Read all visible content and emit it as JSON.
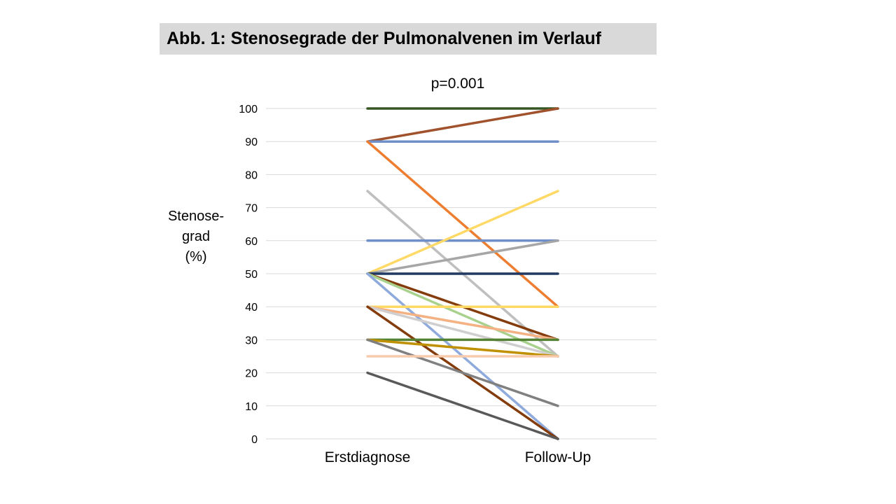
{
  "title": "Abb. 1: Stenosegrade der Pulmonalvenen im Verlauf",
  "ylabel_lines": [
    "Stenose-",
    "grad",
    "(%)"
  ],
  "chart_data": {
    "type": "line",
    "title": "Abb. 1: Stenosegrade der Pulmonalvenen im Verlauf",
    "subtitle": "p=0.001",
    "xlabel": "",
    "ylabel": "Stenose-grad (%)",
    "categories": [
      "Erstdiagnose",
      "Follow-Up"
    ],
    "ylim": [
      0,
      100
    ],
    "yticks": [
      0,
      10,
      20,
      30,
      40,
      50,
      60,
      70,
      80,
      90,
      100
    ],
    "grid": true,
    "legend": "none",
    "series": [
      {
        "values": [
          100,
          100
        ],
        "color": "#375623"
      },
      {
        "values": [
          90,
          100
        ],
        "color": "#a0522d"
      },
      {
        "values": [
          90,
          90
        ],
        "color": "#6f8fc8"
      },
      {
        "values": [
          90,
          40
        ],
        "color": "#ed7d31"
      },
      {
        "values": [
          75,
          25
        ],
        "color": "#bfbfbf"
      },
      {
        "values": [
          60,
          60
        ],
        "color": "#6f8fc8"
      },
      {
        "values": [
          50,
          75
        ],
        "color": "#ffd966"
      },
      {
        "values": [
          50,
          60
        ],
        "color": "#a6a6a6"
      },
      {
        "values": [
          50,
          50
        ],
        "color": "#1f3864"
      },
      {
        "values": [
          50,
          30
        ],
        "color": "#843c0c"
      },
      {
        "values": [
          50,
          25
        ],
        "color": "#a9d18e"
      },
      {
        "values": [
          50,
          0
        ],
        "color": "#8faadc"
      },
      {
        "values": [
          40,
          40
        ],
        "color": "#ffd966"
      },
      {
        "values": [
          40,
          30
        ],
        "color": "#f4b183"
      },
      {
        "values": [
          40,
          25
        ],
        "color": "#d0cece"
      },
      {
        "values": [
          40,
          0
        ],
        "color": "#843c0c"
      },
      {
        "values": [
          30,
          30
        ],
        "color": "#548235"
      },
      {
        "values": [
          30,
          25
        ],
        "color": "#bf9000"
      },
      {
        "values": [
          30,
          10
        ],
        "color": "#808080"
      },
      {
        "values": [
          25,
          25
        ],
        "color": "#f8cbad"
      },
      {
        "values": [
          20,
          0
        ],
        "color": "#595959"
      }
    ]
  }
}
